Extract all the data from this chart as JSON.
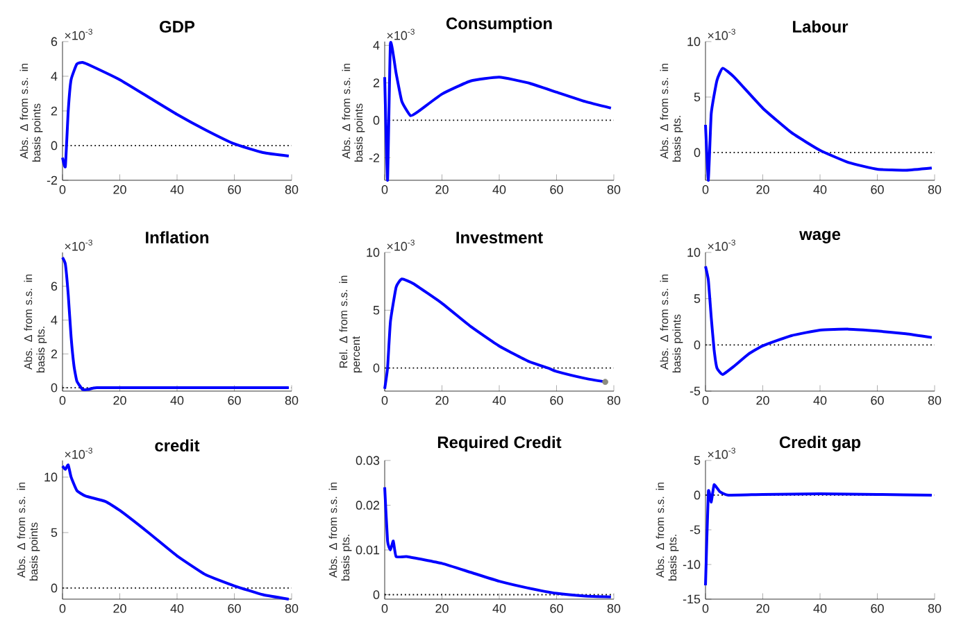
{
  "chart_data": [
    {
      "type": "line",
      "title": "GDP",
      "ylabel": "Abs. Δ from s.s. in basis points",
      "annotations": [
        "×10$^{-3}$"
      ],
      "xlim": [
        0,
        80
      ],
      "xticks": [
        0,
        20,
        40,
        60,
        80
      ],
      "ylim": [
        -2,
        6
      ],
      "yticks": [
        -2,
        0,
        2,
        4,
        6
      ],
      "grid": false,
      "ref_lines": [
        {
          "axis": "y",
          "value": 0,
          "line_style": "dotted",
          "color": "#000000"
        }
      ],
      "series": [
        {
          "color": "#0000ff",
          "x": [
            0,
            1,
            2,
            3,
            5,
            7,
            10,
            20,
            30,
            40,
            50,
            60,
            70,
            79
          ],
          "values": [
            -0.7,
            -1.2,
            2.0,
            3.8,
            4.7,
            4.8,
            4.6,
            3.8,
            2.8,
            1.8,
            0.9,
            0.1,
            -0.4,
            -0.6
          ]
        }
      ]
    },
    {
      "type": "line",
      "title": "Consumption",
      "ylabel": "Abs. Δ from s.s. in basis points",
      "annotations": [
        "×10$^{-3}$"
      ],
      "xlim": [
        0,
        80
      ],
      "xticks": [
        0,
        20,
        40,
        60,
        80
      ],
      "ylim": [
        -3.2,
        4.2
      ],
      "yticks": [
        -2,
        0,
        2,
        4
      ],
      "grid": false,
      "ref_lines": [
        {
          "axis": "y",
          "value": 0,
          "line_style": "dotted",
          "color": "#000000"
        }
      ],
      "series": [
        {
          "color": "#0000ff",
          "x": [
            0,
            1,
            2,
            4,
            6,
            9,
            12,
            20,
            30,
            40,
            50,
            60,
            70,
            79
          ],
          "values": [
            2.3,
            -3.2,
            4.1,
            2.5,
            1.0,
            0.25,
            0.5,
            1.4,
            2.1,
            2.3,
            2.0,
            1.5,
            1.0,
            0.65
          ]
        }
      ]
    },
    {
      "type": "line",
      "title": "Labour",
      "ylabel": "Abs. Δ from s.s. in basis pts.",
      "annotations": [
        "×10$^{-3}$"
      ],
      "xlim": [
        0,
        80
      ],
      "xticks": [
        0,
        20,
        40,
        60,
        80
      ],
      "ylim": [
        -2.5,
        10
      ],
      "yticks": [
        0,
        5,
        10
      ],
      "grid": false,
      "ref_lines": [
        {
          "axis": "y",
          "value": 0,
          "line_style": "dotted",
          "color": "#000000"
        }
      ],
      "series": [
        {
          "color": "#0000ff",
          "x": [
            0,
            1,
            2,
            4,
            6,
            10,
            20,
            30,
            40,
            50,
            60,
            70,
            79
          ],
          "values": [
            2.5,
            -2.5,
            3.5,
            6.5,
            7.6,
            6.8,
            4.0,
            1.8,
            0.2,
            -0.9,
            -1.5,
            -1.6,
            -1.4
          ]
        }
      ]
    },
    {
      "type": "line",
      "title": "Inflation",
      "ylabel": "Abs. Δ from s.s. in basis pts.",
      "annotations": [
        "×10$^{-3}$"
      ],
      "xlim": [
        0,
        80
      ],
      "xticks": [
        0,
        20,
        40,
        60,
        80
      ],
      "ylim": [
        -0.2,
        8
      ],
      "yticks": [
        0,
        2,
        4,
        6
      ],
      "grid": false,
      "ref_lines": [
        {
          "axis": "y",
          "value": 0,
          "line_style": "dotted",
          "color": "#000000"
        }
      ],
      "series": [
        {
          "color": "#0000ff",
          "x": [
            0,
            1,
            2,
            3,
            4,
            5,
            7,
            9,
            12,
            30,
            50,
            79
          ],
          "values": [
            7.7,
            7.3,
            5.5,
            3.0,
            1.3,
            0.4,
            -0.1,
            -0.1,
            0,
            0,
            0,
            0
          ]
        }
      ]
    },
    {
      "type": "line",
      "title": "Investment",
      "ylabel": "Rel. Δ from s.s. in percent",
      "annotations": [
        "×10$^{-3}$"
      ],
      "xlim": [
        0,
        80
      ],
      "xticks": [
        0,
        20,
        40,
        60,
        80
      ],
      "ylim": [
        -2,
        10
      ],
      "yticks": [
        0,
        5,
        10
      ],
      "grid": false,
      "ref_lines": [
        {
          "axis": "y",
          "value": 0,
          "line_style": "dotted",
          "color": "#000000"
        }
      ],
      "series": [
        {
          "color": "#0000ff",
          "x": [
            0,
            1,
            2,
            4,
            6,
            10,
            20,
            30,
            40,
            50,
            57,
            60,
            70,
            77
          ],
          "values": [
            -1.8,
            0,
            4,
            7,
            7.7,
            7.3,
            5.6,
            3.6,
            1.9,
            0.6,
            0,
            -0.3,
            -0.9,
            -1.2
          ]
        },
        {
          "type": "scatter",
          "marker": "circle",
          "color": "#8c8c80",
          "x": [
            77
          ],
          "values": [
            -1.2
          ]
        }
      ]
    },
    {
      "type": "line",
      "title": "wage",
      "ylabel": "Abs. Δ from s.s. in basis points",
      "annotations": [
        "×10$^{-3}$"
      ],
      "xlim": [
        0,
        80
      ],
      "xticks": [
        0,
        20,
        40,
        60,
        80
      ],
      "ylim": [
        -5,
        10
      ],
      "yticks": [
        -5,
        0,
        5,
        10
      ],
      "grid": false,
      "ref_lines": [
        {
          "axis": "y",
          "value": 0,
          "line_style": "dotted",
          "color": "#000000"
        }
      ],
      "series": [
        {
          "color": "#0000ff",
          "x": [
            0,
            1,
            2,
            3,
            4,
            6,
            10,
            15,
            20,
            30,
            40,
            50,
            60,
            70,
            79
          ],
          "values": [
            8.5,
            7,
            3,
            -0.5,
            -2.5,
            -3.2,
            -2.3,
            -1.0,
            -0.1,
            1.0,
            1.6,
            1.7,
            1.5,
            1.2,
            0.8
          ]
        }
      ]
    },
    {
      "type": "line",
      "title": "credit",
      "ylabel": "Abs. Δ from s.s. in basis points",
      "annotations": [
        "×10$^{-3}$"
      ],
      "xlim": [
        0,
        80
      ],
      "xticks": [
        0,
        20,
        40,
        60,
        80
      ],
      "ylim": [
        -1,
        11.5
      ],
      "yticks": [
        0,
        5,
        10
      ],
      "grid": false,
      "ref_lines": [
        {
          "axis": "y",
          "value": 0,
          "line_style": "dotted",
          "color": "#000000"
        }
      ],
      "series": [
        {
          "color": "#0000ff",
          "x": [
            0,
            1,
            2,
            3,
            5,
            8,
            15,
            20,
            30,
            40,
            50,
            60,
            70,
            79
          ],
          "values": [
            11,
            10.7,
            11.1,
            10,
            8.8,
            8.3,
            7.8,
            7.0,
            5.0,
            2.9,
            1.2,
            0.2,
            -0.6,
            -1.0
          ]
        }
      ]
    },
    {
      "type": "line",
      "title": "Required Credit",
      "ylabel": "Abs. Δ from s.s. in basis pts.",
      "xlim": [
        0,
        80
      ],
      "xticks": [
        0,
        20,
        40,
        60,
        80
      ],
      "ylim": [
        -0.001,
        0.03
      ],
      "yticks": [
        0,
        0.01,
        0.02,
        0.03
      ],
      "grid": false,
      "ref_lines": [
        {
          "axis": "y",
          "value": 0,
          "line_style": "dotted",
          "color": "#000000"
        }
      ],
      "series": [
        {
          "color": "#0000ff",
          "x": [
            0,
            1,
            2,
            3,
            4,
            8,
            20,
            30,
            40,
            50,
            60,
            70,
            79
          ],
          "values": [
            0.024,
            0.012,
            0.01,
            0.012,
            0.0085,
            0.0085,
            0.007,
            0.005,
            0.003,
            0.0015,
            0.0003,
            -0.0003,
            -0.0005
          ]
        }
      ]
    },
    {
      "type": "line",
      "title": "Credit gap",
      "ylabel": "Abs. Δ from s.s. in basis pts.",
      "annotations": [
        "×10$^{-3}$"
      ],
      "xlim": [
        0,
        80
      ],
      "xticks": [
        0,
        20,
        40,
        60,
        80
      ],
      "ylim": [
        -15,
        5
      ],
      "yticks": [
        -15,
        -10,
        -5,
        0,
        5
      ],
      "grid": false,
      "ref_lines": [
        {
          "axis": "y",
          "value": 0,
          "line_style": "dotted",
          "color": "#000000"
        }
      ],
      "series": [
        {
          "color": "#0000ff",
          "x": [
            0,
            1,
            2,
            3,
            5,
            8,
            20,
            40,
            60,
            79
          ],
          "values": [
            -13,
            0.5,
            -1,
            1.5,
            0.5,
            0,
            0.1,
            0.2,
            0.1,
            0
          ]
        }
      ]
    }
  ]
}
